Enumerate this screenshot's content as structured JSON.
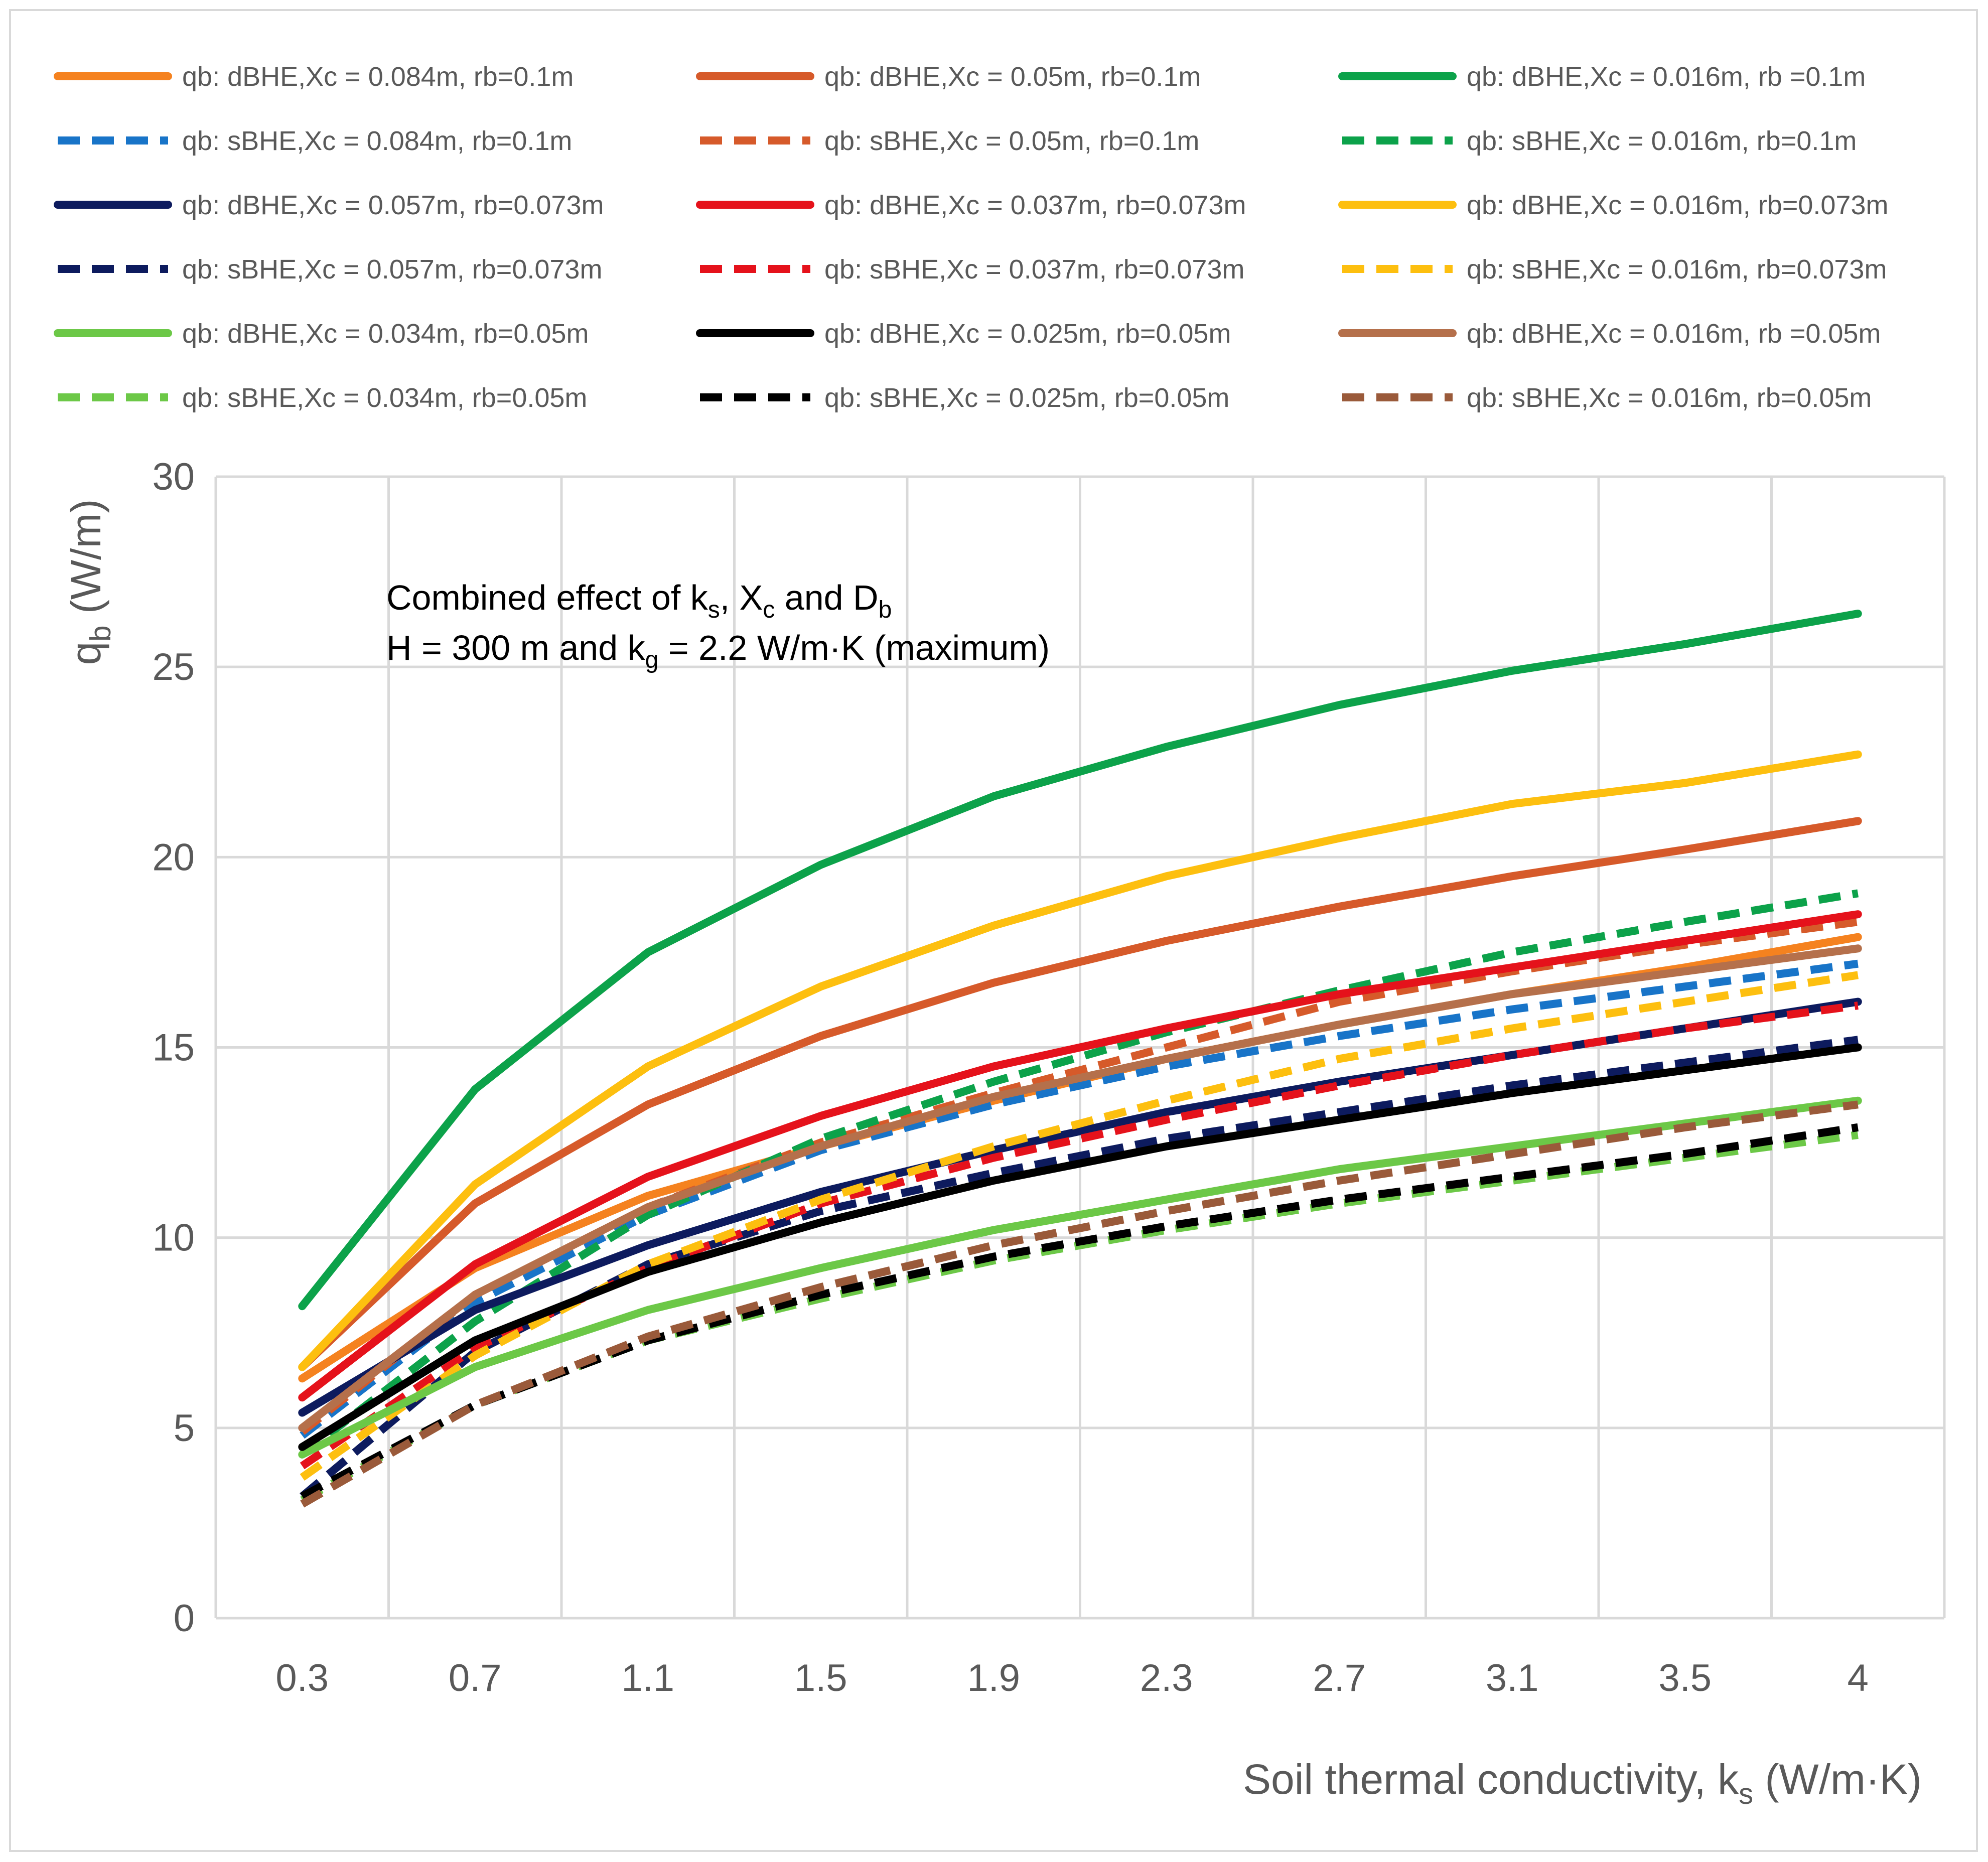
{
  "chart_data": {
    "type": "line",
    "annotation": {
      "line1": {
        "a": "Combined effect of k",
        "a_sub": "s",
        "b": ", X",
        "b_sub": "c",
        "c": " and D",
        "c_sub": "b"
      },
      "line2": {
        "a": "H = 300 m and k",
        "a_sub": "g",
        "b": " = 2.2 W/m·K (maximum)"
      }
    },
    "xlabel": {
      "text": "Soil thermal conductivity, k",
      "sub": "s",
      "tail": " (W/m·K)"
    },
    "ylabel": {
      "text": "q",
      "sub": "b",
      "tail": " (W/m)"
    },
    "categories": [
      "0.3",
      "0.7",
      "1.1",
      "1.5",
      "1.9",
      "2.3",
      "2.7",
      "3.1",
      "3.5",
      "4"
    ],
    "ylim": [
      0,
      30
    ],
    "yticks": [
      "0",
      "5",
      "10",
      "15",
      "20",
      "25",
      "30"
    ],
    "grid": true,
    "legend_position": "top",
    "series": [
      {
        "name": "qb: dBHE,Xc = 0.084m, rb=0.1m",
        "color": "#F5821F",
        "dash": false,
        "values": [
          6.3,
          9.2,
          11.1,
          12.4,
          13.6,
          14.7,
          15.6,
          16.4,
          17.1,
          17.9
        ]
      },
      {
        "name": "qb: dBHE,Xc = 0.05m, rb=0.1m",
        "color": "#D65A2A",
        "dash": false,
        "values": [
          6.6,
          10.9,
          13.5,
          15.3,
          16.7,
          17.8,
          18.7,
          19.5,
          20.2,
          20.95
        ]
      },
      {
        "name": "qb: dBHE,Xc = 0.016m, rb =0.1m",
        "color": "#0CA24A",
        "dash": false,
        "values": [
          8.2,
          13.9,
          17.5,
          19.8,
          21.6,
          22.9,
          24.0,
          24.9,
          25.6,
          26.4
        ]
      },
      {
        "name": "qb: sBHE,Xc = 0.084m, rb=0.1m",
        "color": "#1874C8",
        "dash": true,
        "values": [
          4.8,
          8.3,
          10.6,
          12.3,
          13.5,
          14.5,
          15.3,
          16.0,
          16.6,
          17.2
        ]
      },
      {
        "name": "qb: sBHE,Xc = 0.05m, rb=0.1m",
        "color": "#D65A2A",
        "dash": true,
        "values": [
          4.9,
          8.5,
          10.8,
          12.5,
          13.8,
          15.0,
          16.2,
          17.0,
          17.7,
          18.3
        ]
      },
      {
        "name": "qb: sBHE,Xc = 0.016m, rb=0.1m",
        "color": "#0CA24A",
        "dash": true,
        "values": [
          4.3,
          7.8,
          10.6,
          12.6,
          14.1,
          15.4,
          16.5,
          17.5,
          18.3,
          19.05
        ]
      },
      {
        "name": "qb: dBHE,Xc = 0.057m, rb=0.073m",
        "color": "#0D1B5E",
        "dash": false,
        "values": [
          5.4,
          8.1,
          9.8,
          11.2,
          12.3,
          13.3,
          14.1,
          14.8,
          15.5,
          16.2
        ]
      },
      {
        "name": "qb: dBHE,Xc = 0.037m, rb=0.073m",
        "color": "#E5121B",
        "dash": false,
        "values": [
          5.8,
          9.3,
          11.6,
          13.2,
          14.5,
          15.5,
          16.4,
          17.1,
          17.8,
          18.5
        ]
      },
      {
        "name": "qb: dBHE,Xc = 0.016m, rb=0.073m",
        "color": "#FDBF0F",
        "dash": false,
        "values": [
          6.6,
          11.4,
          14.5,
          16.6,
          18.2,
          19.5,
          20.5,
          21.4,
          21.95,
          22.7
        ]
      },
      {
        "name": "qb: sBHE,Xc = 0.057m, rb=0.073m",
        "color": "#0D1B5E",
        "dash": true,
        "values": [
          3.2,
          7.0,
          9.3,
          10.7,
          11.7,
          12.6,
          13.3,
          14.0,
          14.6,
          15.2
        ]
      },
      {
        "name": "qb: sBHE,Xc = 0.037m, rb=0.073m",
        "color": "#E5121B",
        "dash": true,
        "values": [
          4.0,
          7.1,
          9.2,
          10.9,
          12.1,
          13.1,
          14.0,
          14.8,
          15.5,
          16.1
        ]
      },
      {
        "name": "qb: sBHE,Xc = 0.016m, rb=0.073m",
        "color": "#FDBF0F",
        "dash": true,
        "values": [
          3.7,
          6.9,
          9.3,
          11.0,
          12.4,
          13.6,
          14.7,
          15.5,
          16.2,
          16.9
        ]
      },
      {
        "name": "qb: dBHE,Xc = 0.034m, rb=0.05m",
        "color": "#6CC847",
        "dash": false,
        "values": [
          4.3,
          6.6,
          8.1,
          9.2,
          10.2,
          11.0,
          11.8,
          12.4,
          13.0,
          13.6
        ]
      },
      {
        "name": "qb: dBHE,Xc = 0.025m, rb=0.05m",
        "color": "#000000",
        "dash": false,
        "values": [
          4.5,
          7.3,
          9.1,
          10.4,
          11.5,
          12.4,
          13.1,
          13.8,
          14.4,
          15.0
        ]
      },
      {
        "name": "qb: dBHE,Xc = 0.016m, rb =0.05m",
        "color": "#B5704B",
        "dash": false,
        "values": [
          5.0,
          8.5,
          10.8,
          12.4,
          13.7,
          14.7,
          15.6,
          16.4,
          17.0,
          17.6
        ]
      },
      {
        "name": "qb: sBHE,Xc = 0.034m, rb=0.05m",
        "color": "#6CC847",
        "dash": true,
        "values": [
          3.1,
          5.6,
          7.3,
          8.4,
          9.4,
          10.2,
          10.9,
          11.5,
          12.1,
          12.7
        ]
      },
      {
        "name": "qb: sBHE,Xc = 0.025m, rb=0.05m",
        "color": "#000000",
        "dash": true,
        "values": [
          3.2,
          5.6,
          7.3,
          8.5,
          9.5,
          10.3,
          11.0,
          11.6,
          12.2,
          12.9
        ]
      },
      {
        "name": "qb: sBHE,Xc = 0.016m, rb=0.05m",
        "color": "#9A5A3A",
        "dash": true,
        "values": [
          3.0,
          5.6,
          7.4,
          8.7,
          9.8,
          10.7,
          11.5,
          12.2,
          12.9,
          13.5
        ]
      }
    ]
  }
}
